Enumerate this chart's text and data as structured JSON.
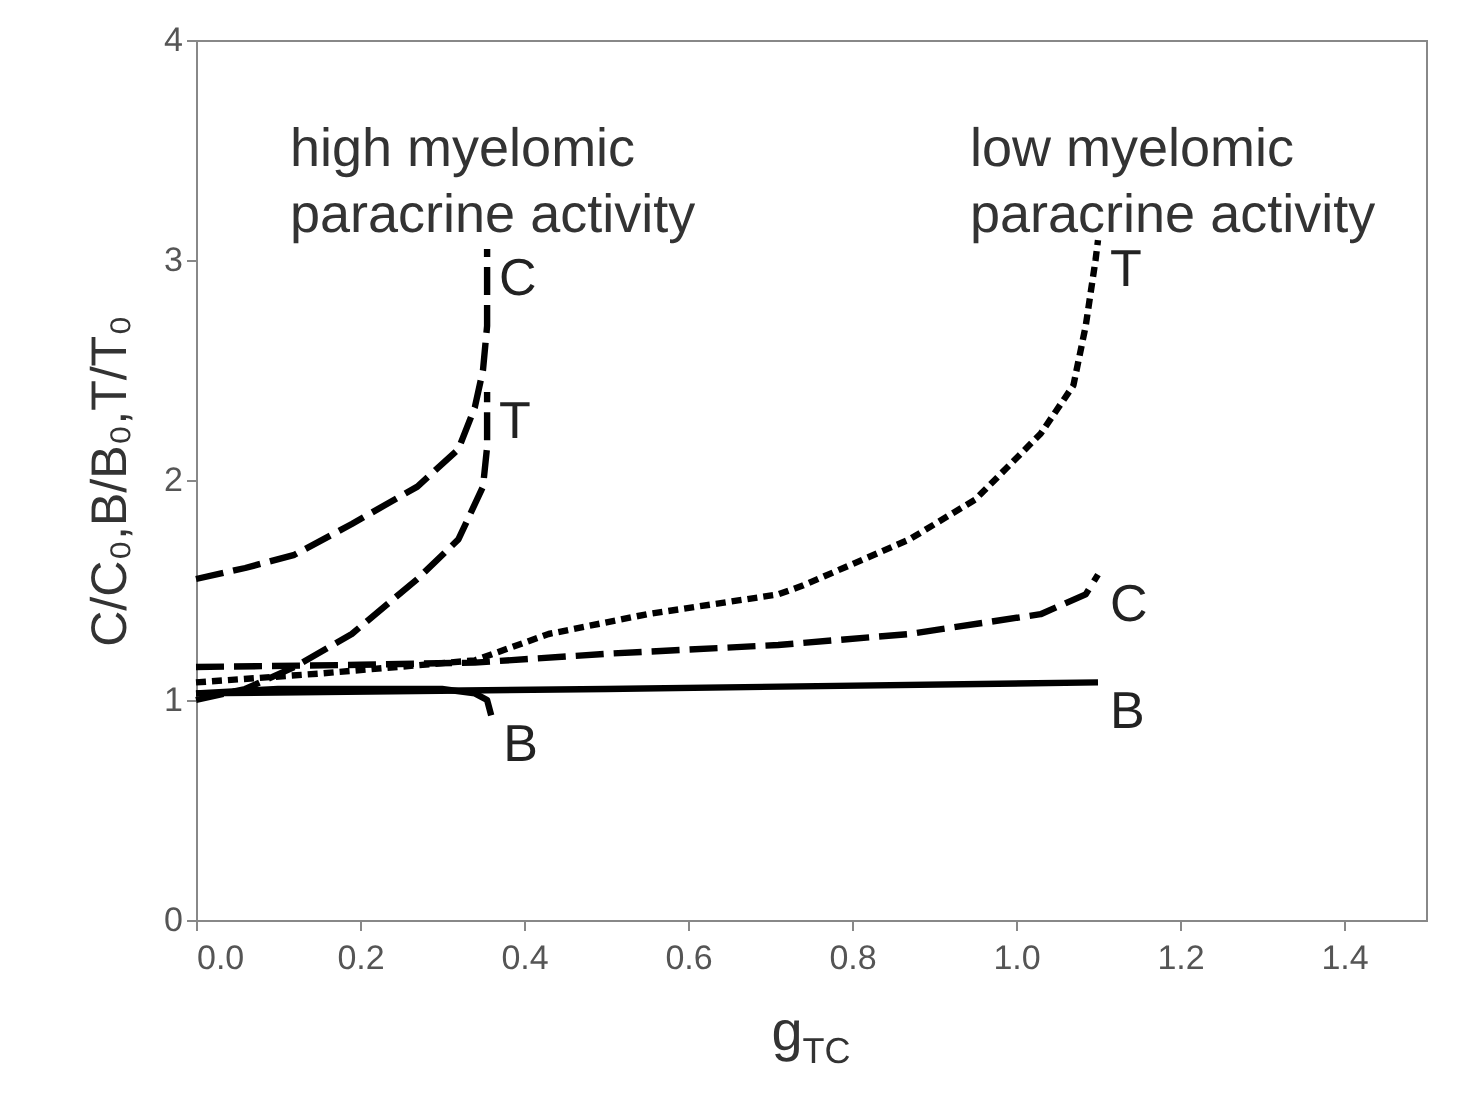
{
  "chart_data": {
    "type": "line",
    "xlabel": "g$_{TC}$",
    "ylabel": "C/C₀,B/B₀,T/T₀",
    "xlim": [
      0,
      1.5
    ],
    "ylim": [
      0,
      4
    ],
    "xticks": [
      {
        "value": 0,
        "label": "0.0"
      },
      0.2,
      0.4,
      0.6,
      0.8,
      {
        "value": 1,
        "label": "1.0"
      },
      1.2,
      1.4
    ],
    "yticks": [
      0,
      1,
      2,
      3,
      4
    ],
    "grid": false,
    "marker": "none",
    "annotations": [
      "high myelomic paracrine activity",
      "low myelomic paracrine activity"
    ],
    "series": [
      {
        "name": "C",
        "color": "#000000",
        "line_style": "dashed",
        "x": [
          0,
          0.06,
          0.12,
          0.19,
          0.27,
          0.32,
          0.34,
          0.35,
          0.355,
          0.355
        ],
        "values": [
          1.55,
          1.6,
          1.66,
          1.8,
          1.97,
          2.14,
          2.33,
          2.5,
          2.7,
          3.05
        ]
      },
      {
        "name": "T",
        "color": "#000000",
        "line_style": "dashed",
        "x": [
          0,
          0.06,
          0.12,
          0.19,
          0.27,
          0.32,
          0.35,
          0.355,
          0.355
        ],
        "values": [
          1.0,
          1.05,
          1.15,
          1.3,
          1.55,
          1.73,
          1.97,
          2.15,
          2.4
        ]
      },
      {
        "name": "B",
        "color": "#000000",
        "line_style": "solid",
        "x": [
          0,
          0.1,
          0.2,
          0.3,
          0.34,
          0.355,
          0.36
        ],
        "values": [
          1.03,
          1.05,
          1.05,
          1.05,
          1.03,
          1.0,
          0.93
        ]
      },
      {
        "name": "T",
        "color": "#000000",
        "line_style": "dotted",
        "x": [
          0,
          0.15,
          0.34,
          0.43,
          0.55,
          0.71,
          0.74,
          0.87,
          0.95,
          1.03,
          1.07,
          1.085,
          1.097,
          1.1
        ],
        "values": [
          1.08,
          1.12,
          1.18,
          1.3,
          1.39,
          1.48,
          1.52,
          1.73,
          1.91,
          2.21,
          2.43,
          2.7,
          3.0,
          3.09
        ]
      },
      {
        "name": "C",
        "color": "#000000",
        "line_style": "dashed",
        "x": [
          0,
          0.2,
          0.34,
          0.5,
          0.71,
          0.87,
          1.03,
          1.085,
          1.1
        ],
        "values": [
          1.15,
          1.16,
          1.17,
          1.21,
          1.25,
          1.3,
          1.39,
          1.48,
          1.57
        ]
      },
      {
        "name": "B",
        "color": "#000000",
        "line_style": "solid",
        "x": [
          0,
          0.5,
          1.1
        ],
        "values": [
          1.03,
          1.05,
          1.08
        ]
      }
    ]
  }
}
